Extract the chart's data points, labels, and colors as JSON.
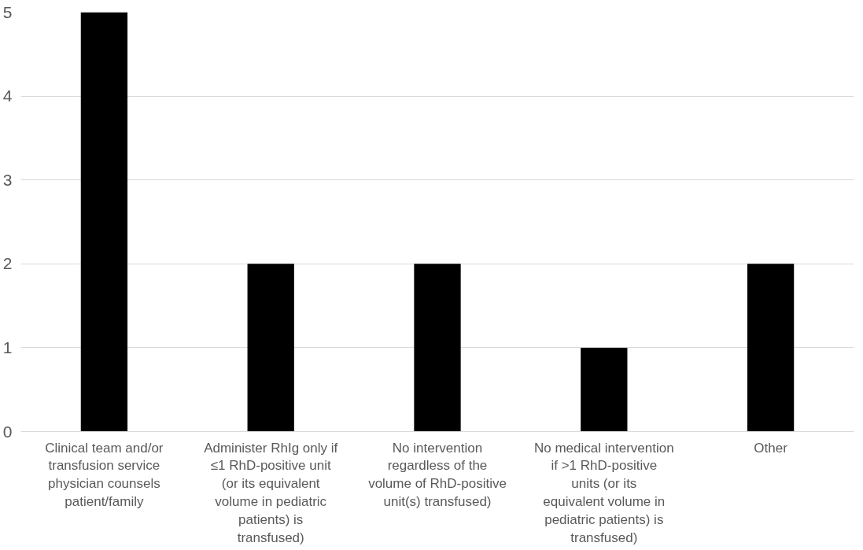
{
  "chart_data": {
    "type": "bar",
    "categories": [
      "Clinical team and/or transfusion service physician counsels patient/family",
      "Administer RhIg only if ≤1 RhD-positive unit (or its equivalent volume in pediatric patients) is transfused)",
      "No intervention regardless of the volume of RhD-positive unit(s) transfused)",
      "No medical intervention if >1 RhD-positive units (or its equivalent volume in pediatric patients) is transfused)",
      "Other"
    ],
    "values": [
      5,
      2,
      2,
      1,
      2
    ],
    "color": "#000000",
    "ylim": [
      0,
      5
    ],
    "yticks": [
      0,
      1,
      2,
      3,
      4,
      5
    ],
    "grid": "y"
  }
}
